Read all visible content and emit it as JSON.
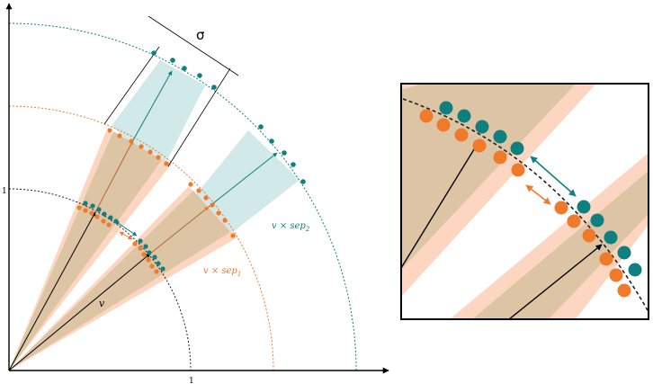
{
  "figure": {
    "sigma_label": "σ",
    "v_label": "v",
    "sep1_label": "v × sep",
    "sep1_sub": "1",
    "sep2_label": "v × sep",
    "sep2_sub": "2",
    "tick_x": "1",
    "tick_y": "1"
  },
  "colors": {
    "teal": "#0f7f7f",
    "orange": "#f07a2a",
    "teal_band": "#d2e9e9",
    "orange_band": "#fcd6c1",
    "overlap_band": "#dcc4a4",
    "dark_arc": "#222222"
  }
}
